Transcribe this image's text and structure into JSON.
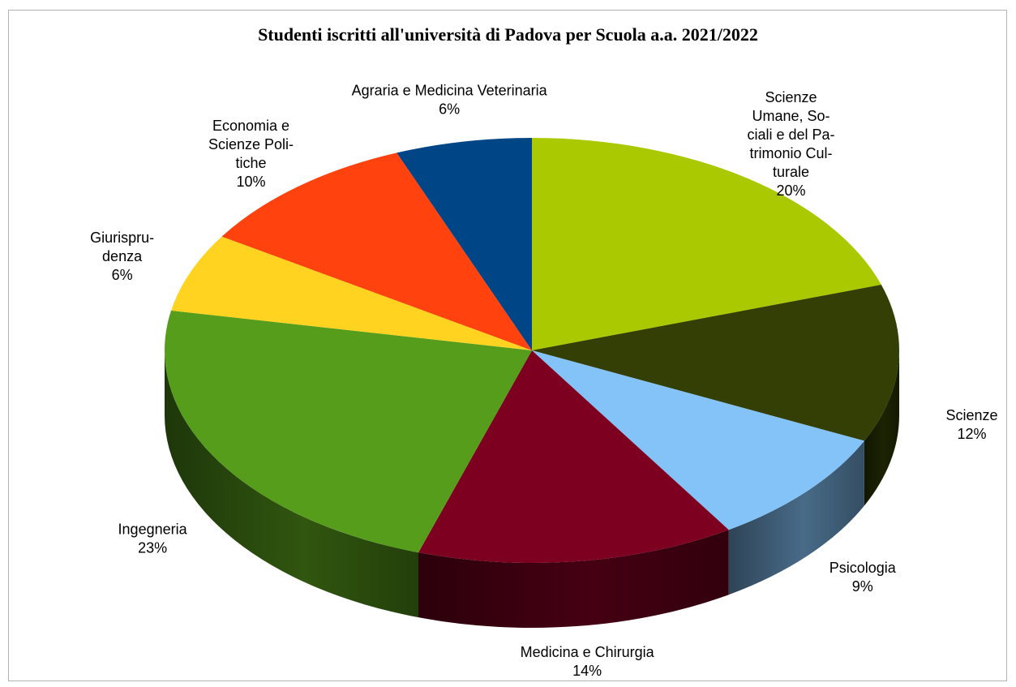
{
  "chart_data": {
    "type": "pie",
    "title": "Studenti iscritti all'università di Padova per Scuola  a.a. 2021/2022",
    "slices": [
      {
        "label": "Scienze Umane, Sociali e del Patrimonio Culturale",
        "label_lines": [
          "Scienze",
          "Umane, So-",
          "ciali e del Pa-",
          "trimonio Cul-",
          "turale"
        ],
        "value": 20,
        "pct": "20%",
        "color": "#aac900"
      },
      {
        "label": "Scienze",
        "label_lines": [
          "Scienze"
        ],
        "value": 12,
        "pct": "12%",
        "color": "#333f05"
      },
      {
        "label": "Psicologia",
        "label_lines": [
          "Psicologia"
        ],
        "value": 9,
        "pct": "9%",
        "color": "#83c3f8"
      },
      {
        "label": "Medicina e Chirurgia",
        "label_lines": [
          "Medicina e Chirurgia"
        ],
        "value": 14,
        "pct": "14%",
        "color": "#7e0021"
      },
      {
        "label": "Ingegneria",
        "label_lines": [
          "Ingegneria"
        ],
        "value": 23,
        "pct": "23%",
        "color": "#579d1c"
      },
      {
        "label": "Giurisprudenza",
        "label_lines": [
          "Giurispru-",
          "denza"
        ],
        "value": 6,
        "pct": "6%",
        "color": "#ffd320"
      },
      {
        "label": "Economia e Scienze Politiche",
        "label_lines": [
          "Economia e",
          "Scienze Poli-",
          "tiche"
        ],
        "value": 10,
        "pct": "10%",
        "color": "#ff420e"
      },
      {
        "label": "Agraria e Medicina Veterinaria",
        "label_lines": [
          "Agraria e Medicina Veterinaria"
        ],
        "value": 6,
        "pct": "6%",
        "color": "#004586"
      }
    ],
    "start": "top",
    "direction": "clockwise",
    "legend": "none",
    "style": "3d"
  }
}
